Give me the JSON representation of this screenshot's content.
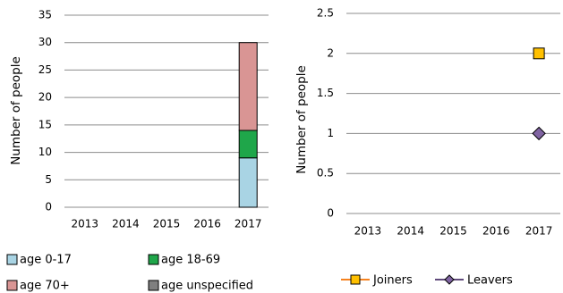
{
  "chart_data": [
    {
      "type": "bar",
      "stacked": true,
      "ylabel": "Number of people",
      "ylim": [
        0,
        35
      ],
      "yticks": [
        0,
        5,
        10,
        15,
        20,
        25,
        30,
        35
      ],
      "categories": [
        "2013",
        "2014",
        "2015",
        "2016",
        "2017"
      ],
      "grid": true,
      "legend_position": "bottom",
      "series": [
        {
          "name": "age 0-17",
          "color": "#a9d4e4",
          "values": [
            0,
            0,
            0,
            0,
            9
          ]
        },
        {
          "name": "age 18-69",
          "color": "#1fa64a",
          "values": [
            0,
            0,
            0,
            0,
            5
          ]
        },
        {
          "name": "age 70+",
          "color": "#d99594",
          "values": [
            0,
            0,
            0,
            0,
            16
          ]
        },
        {
          "name": "age unspecified",
          "color": "#7f7f7f",
          "values": [
            0,
            0,
            0,
            0,
            0
          ]
        }
      ]
    },
    {
      "type": "scatter",
      "ylabel": "Number of people",
      "ylim": [
        0,
        2.5
      ],
      "yticks": [
        "0",
        "0.5",
        "1",
        "1.5",
        "2",
        "2.5"
      ],
      "categories": [
        "2013",
        "2014",
        "2015",
        "2016",
        "2017"
      ],
      "grid": true,
      "legend_position": "bottom",
      "series": [
        {
          "name": "Joiners",
          "color": "#ffc000",
          "line_color": "#f58220",
          "marker": "square",
          "values": [
            null,
            null,
            null,
            null,
            2
          ]
        },
        {
          "name": "Leavers",
          "color": "#8064a2",
          "line_color": "#604a7b",
          "marker": "diamond",
          "values": [
            null,
            null,
            null,
            null,
            1
          ]
        }
      ]
    }
  ]
}
